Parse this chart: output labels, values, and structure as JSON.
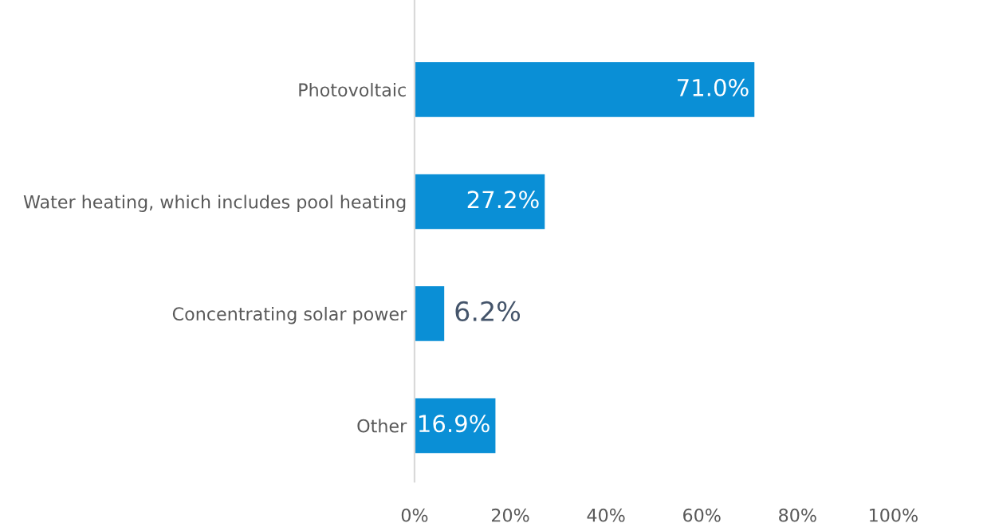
{
  "chart_data": {
    "type": "bar",
    "orientation": "horizontal",
    "categories": [
      "Photovoltaic",
      "Water heating, which includes pool heating",
      "Concentrating solar power",
      "Other"
    ],
    "values": [
      71.0,
      27.2,
      6.2,
      16.9
    ],
    "value_labels": [
      "71.0%",
      "27.2%",
      "6.2%",
      "16.9%"
    ],
    "color": "#0a8fd6",
    "xlim": [
      0,
      100
    ],
    "xticks": [
      {
        "value": 0,
        "label": "0%"
      },
      {
        "value": 20,
        "label": "20%"
      },
      {
        "value": 40,
        "label": "40%"
      },
      {
        "value": 60,
        "label": "60%"
      },
      {
        "value": 80,
        "label": "80%"
      },
      {
        "value": 100,
        "label": "100%"
      }
    ],
    "grid": false,
    "legend": false
  }
}
